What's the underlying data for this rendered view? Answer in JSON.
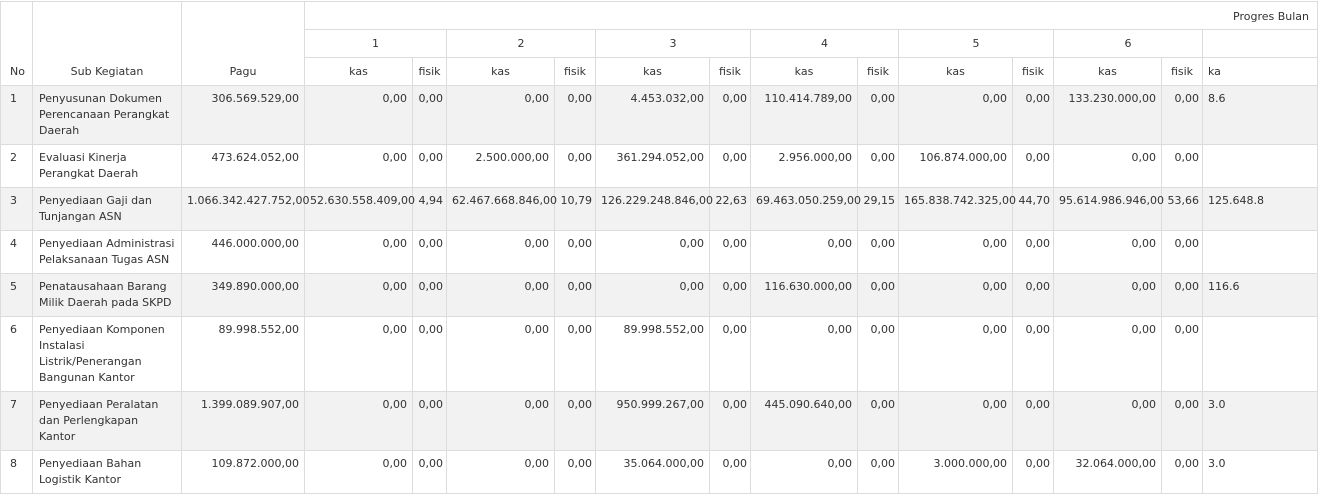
{
  "header": {
    "no": "No",
    "sub_kegiatan": "Sub Kegiatan",
    "pagu": "Pagu",
    "progres_bulan": "Progres Bulan",
    "months": [
      "1",
      "2",
      "3",
      "4",
      "5",
      "6"
    ],
    "kas": "kas",
    "fisik": "fisik",
    "kas_partial": "ka"
  },
  "rows": [
    {
      "no": "1",
      "sub": "Penyusunan Dokumen Perencanaan Perangkat Daerah",
      "pagu": "306.569.529,00",
      "m": [
        [
          "0,00",
          "0,00"
        ],
        [
          "0,00",
          "0,00"
        ],
        [
          "4.453.032,00",
          "0,00"
        ],
        [
          "110.414.789,00",
          "0,00"
        ],
        [
          "0,00",
          "0,00"
        ],
        [
          "133.230.000,00",
          "0,00"
        ]
      ],
      "next_kas": "8.6"
    },
    {
      "no": "2",
      "sub": "Evaluasi Kinerja Perangkat Daerah",
      "pagu": "473.624.052,00",
      "m": [
        [
          "0,00",
          "0,00"
        ],
        [
          "2.500.000,00",
          "0,00"
        ],
        [
          "361.294.052,00",
          "0,00"
        ],
        [
          "2.956.000,00",
          "0,00"
        ],
        [
          "106.874.000,00",
          "0,00"
        ],
        [
          "0,00",
          "0,00"
        ]
      ],
      "next_kas": ""
    },
    {
      "no": "3",
      "sub": "Penyediaan Gaji dan Tunjangan ASN",
      "pagu": "1.066.342.427.752,00",
      "m": [
        [
          "52.630.558.409,00",
          "4,94"
        ],
        [
          "62.467.668.846,00",
          "10,79"
        ],
        [
          "126.229.248.846,00",
          "22,63"
        ],
        [
          "69.463.050.259,00",
          "29,15"
        ],
        [
          "165.838.742.325,00",
          "44,70"
        ],
        [
          "95.614.986.946,00",
          "53,66"
        ]
      ],
      "next_kas": "125.648.8"
    },
    {
      "no": "4",
      "sub": "Penyediaan Administrasi Pelaksanaan Tugas ASN",
      "pagu": "446.000.000,00",
      "m": [
        [
          "0,00",
          "0,00"
        ],
        [
          "0,00",
          "0,00"
        ],
        [
          "0,00",
          "0,00"
        ],
        [
          "0,00",
          "0,00"
        ],
        [
          "0,00",
          "0,00"
        ],
        [
          "0,00",
          "0,00"
        ]
      ],
      "next_kas": ""
    },
    {
      "no": "5",
      "sub": "Penatausahaan Barang Milik Daerah pada SKPD",
      "pagu": "349.890.000,00",
      "m": [
        [
          "0,00",
          "0,00"
        ],
        [
          "0,00",
          "0,00"
        ],
        [
          "0,00",
          "0,00"
        ],
        [
          "116.630.000,00",
          "0,00"
        ],
        [
          "0,00",
          "0,00"
        ],
        [
          "0,00",
          "0,00"
        ]
      ],
      "next_kas": "116.6"
    },
    {
      "no": "6",
      "sub": "Penyediaan Komponen Instalasi Listrik/Penerangan Bangunan Kantor",
      "pagu": "89.998.552,00",
      "m": [
        [
          "0,00",
          "0,00"
        ],
        [
          "0,00",
          "0,00"
        ],
        [
          "89.998.552,00",
          "0,00"
        ],
        [
          "0,00",
          "0,00"
        ],
        [
          "0,00",
          "0,00"
        ],
        [
          "0,00",
          "0,00"
        ]
      ],
      "next_kas": ""
    },
    {
      "no": "7",
      "sub": "Penyediaan Peralatan dan Perlengkapan Kantor",
      "pagu": "1.399.089.907,00",
      "m": [
        [
          "0,00",
          "0,00"
        ],
        [
          "0,00",
          "0,00"
        ],
        [
          "950.999.267,00",
          "0,00"
        ],
        [
          "445.090.640,00",
          "0,00"
        ],
        [
          "0,00",
          "0,00"
        ],
        [
          "0,00",
          "0,00"
        ]
      ],
      "next_kas": "3.0"
    },
    {
      "no": "8",
      "sub": "Penyediaan Bahan Logistik Kantor",
      "pagu": "109.872.000,00",
      "m": [
        [
          "0,00",
          "0,00"
        ],
        [
          "0,00",
          "0,00"
        ],
        [
          "35.064.000,00",
          "0,00"
        ],
        [
          "0,00",
          "0,00"
        ],
        [
          "3.000.000,00",
          "0,00"
        ],
        [
          "32.064.000,00",
          "0,00"
        ]
      ],
      "next_kas": "3.0"
    }
  ]
}
